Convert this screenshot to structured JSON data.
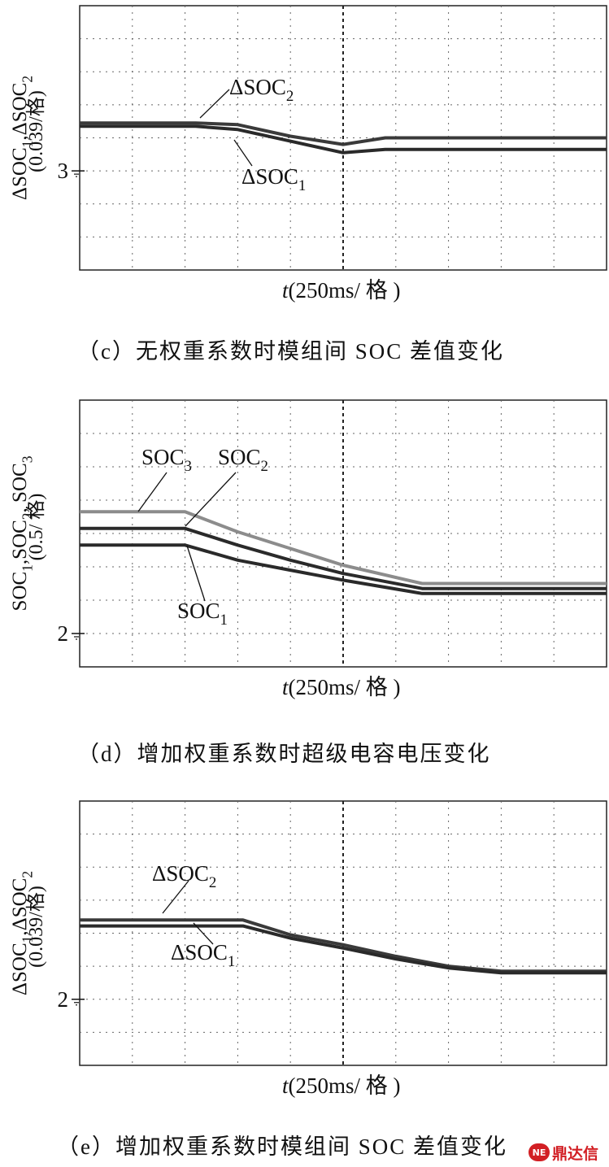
{
  "chart_data": [
    {
      "id": "c",
      "type": "line",
      "caption": "（c）无权重系数时模组间 SOC 差值变化",
      "ylabel_parts": [
        "ΔSOC",
        "1",
        ",ΔSOC",
        "2"
      ],
      "ylabel_scale": "(0.039/格)",
      "xlabel_italic": "t",
      "xlabel_rest": "(250ms/ 格 )",
      "y_marker": "3",
      "grid_divisions": {
        "x": 10,
        "y": 8
      },
      "x_divs": [
        0,
        2.2,
        3.0,
        4.0,
        5.0,
        5.8,
        10
      ],
      "series": [
        {
          "name_parts": [
            "ΔSOC",
            "2"
          ],
          "color": "#3a3a3a",
          "y_divs": [
            3.55,
            3.55,
            3.6,
            3.95,
            4.2,
            4.0,
            4.0
          ]
        },
        {
          "name_parts": [
            "ΔSOC",
            "1"
          ],
          "color": "#2a2a2a",
          "y_divs": [
            3.65,
            3.65,
            3.75,
            4.1,
            4.45,
            4.35,
            4.35
          ]
        }
      ]
    },
    {
      "id": "d",
      "type": "line",
      "caption": "（d）增加权重系数时超级电容电压变化",
      "ylabel_parts": [
        "SOC",
        "1",
        ",SOC",
        "2",
        ", SOC",
        "3"
      ],
      "ylabel_scale": "(0.5/ 格)",
      "xlabel_italic": "t",
      "xlabel_rest": "(250ms/ 格 )",
      "y_marker": "2",
      "grid_divisions": {
        "x": 10,
        "y": 8
      },
      "x_divs": [
        0,
        2.0,
        3.0,
        4.0,
        5.0,
        6.5,
        10
      ],
      "series": [
        {
          "name_parts": [
            "SOC",
            "3"
          ],
          "color": "#8c8c8c",
          "y_divs": [
            3.35,
            3.35,
            3.95,
            4.45,
            4.95,
            5.5,
            5.5
          ]
        },
        {
          "name_parts": [
            "SOC",
            "2"
          ],
          "color": "#2a2a2a",
          "y_divs": [
            3.85,
            3.85,
            4.35,
            4.8,
            5.2,
            5.65,
            5.65
          ]
        },
        {
          "name_parts": [
            "SOC",
            "1"
          ],
          "color": "#2a2a2a",
          "y_divs": [
            4.35,
            4.35,
            4.8,
            5.1,
            5.4,
            5.8,
            5.8
          ]
        }
      ]
    },
    {
      "id": "e",
      "type": "line",
      "caption": "（e）增加权重系数时模组间 SOC 差值变化",
      "ylabel_parts": [
        "ΔSOC",
        "1",
        ",ΔSOC",
        "2"
      ],
      "ylabel_scale": "(0.039/格)",
      "xlabel_italic": "t",
      "xlabel_rest": "(250ms/ 格 )",
      "y_marker": "2",
      "grid_divisions": {
        "x": 10,
        "y": 8
      },
      "x_divs": [
        0,
        3.1,
        4.0,
        5.0,
        6.0,
        7.0,
        8.0,
        10
      ],
      "series": [
        {
          "name_parts": [
            "ΔSOC",
            "2"
          ],
          "color": "#3a3a3a",
          "y_divs": [
            3.6,
            3.6,
            4.05,
            4.35,
            4.7,
            5.0,
            5.15,
            5.15
          ]
        },
        {
          "name_parts": [
            "ΔSOC",
            "1"
          ],
          "color": "#2a2a2a",
          "y_divs": [
            3.78,
            3.78,
            4.15,
            4.45,
            4.78,
            5.05,
            5.2,
            5.2
          ]
        }
      ]
    }
  ],
  "watermark": {
    "badge": "NE",
    "text": "鼎达信"
  }
}
